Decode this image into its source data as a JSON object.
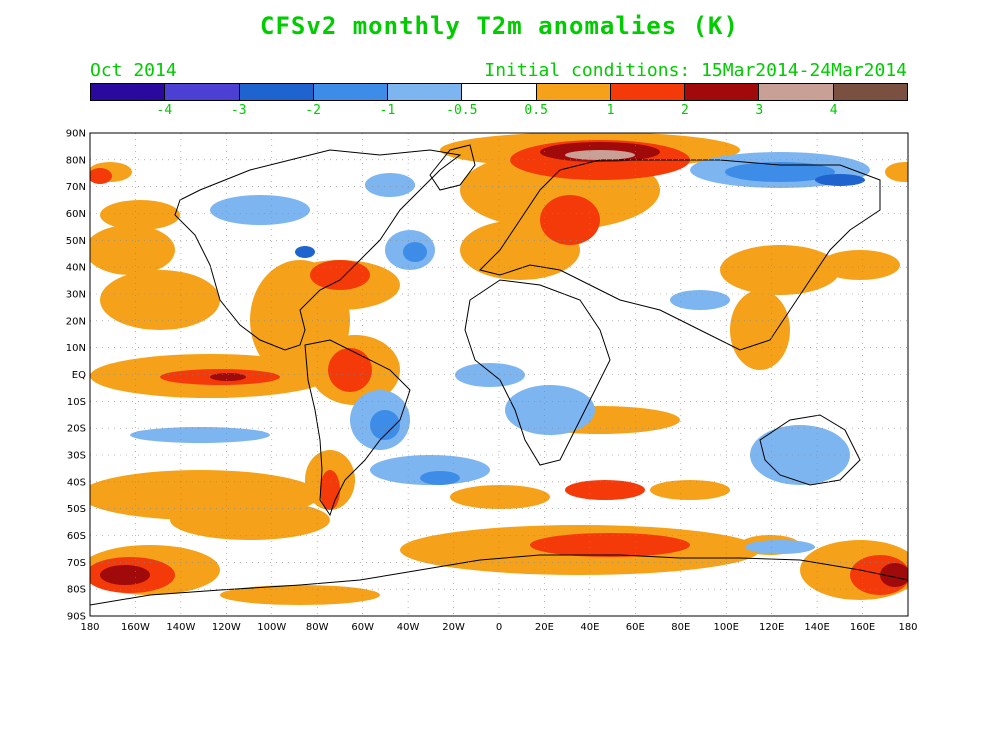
{
  "title": "CFSv2 monthly T2m anomalies (K)",
  "month_label": "Oct 2014",
  "initial_conditions": "Initial conditions: 15Mar2014-24Mar2014",
  "colorbar": {
    "colors": [
      "#2a0a9e",
      "#4b3fd4",
      "#1f63cf",
      "#3d8de8",
      "#7db5f0",
      "#ffffff",
      "#f5a21a",
      "#f53a0a",
      "#a00a0a",
      "#c8a096",
      "#7a5040"
    ],
    "labels": [
      "-4",
      "-3",
      "-2",
      "-1",
      "-0.5",
      "0.5",
      "1",
      "2",
      "3",
      "4"
    ]
  },
  "map": {
    "lat_labels": [
      "90N",
      "80N",
      "70N",
      "60N",
      "50N",
      "40N",
      "30N",
      "20N",
      "10N",
      "EQ",
      "10S",
      "20S",
      "30S",
      "40S",
      "50S",
      "60S",
      "70S",
      "80S",
      "90S"
    ],
    "lon_labels": [
      "180",
      "160W",
      "140W",
      "120W",
      "100W",
      "80W",
      "60W",
      "40W",
      "20W",
      "0",
      "20E",
      "40E",
      "60E",
      "80E",
      "100E",
      "120E",
      "140E",
      "160E",
      "180"
    ]
  }
}
